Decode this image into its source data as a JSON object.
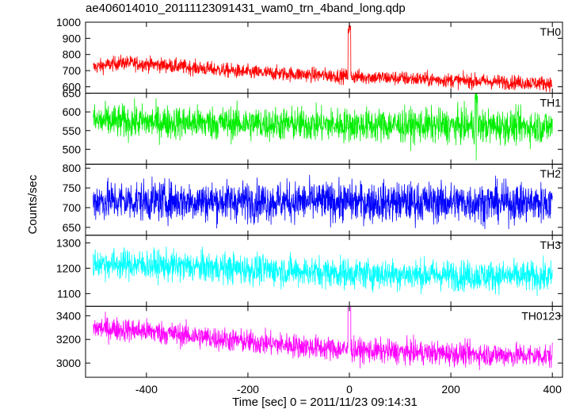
{
  "title": "ae406014010_20111123091431_wam0_trn_4band_long.qdp",
  "chart_data": {
    "type": "line",
    "title": "ae406014010_20111123091431_wam0_trn_4band_long.qdp",
    "xlabel": "Time [sec] 0 = 2011/11/23 09:14:31",
    "ylabel": "Counts/sec",
    "xlim": [
      -520,
      420
    ],
    "xticks": [
      -400,
      -200,
      0,
      200,
      400
    ],
    "grid": false,
    "shared_x": true,
    "panels": [
      {
        "name": "TH0",
        "color": "#ff0000",
        "ylim": [
          560,
          1000
        ],
        "yticks": [
          600,
          700,
          800,
          900,
          1000
        ],
        "x_range": [
          -505,
          400
        ],
        "trend": [
          [
            -505,
            720
          ],
          [
            -450,
            750
          ],
          [
            -350,
            730
          ],
          [
            -200,
            690
          ],
          [
            0,
            665
          ],
          [
            200,
            640
          ],
          [
            400,
            620
          ]
        ],
        "noise": 45,
        "spikes": [
          {
            "x": 0,
            "y": 1000
          }
        ]
      },
      {
        "name": "TH1",
        "color": "#00ee00",
        "ylim": [
          460,
          650
        ],
        "yticks": [
          500,
          550,
          600,
          650
        ],
        "x_range": [
          -505,
          400
        ],
        "trend": [
          [
            -505,
            575
          ],
          [
            0,
            565
          ],
          [
            400,
            560
          ]
        ],
        "noise": 45,
        "spikes": [
          {
            "x": 250,
            "y": 470
          }
        ]
      },
      {
        "name": "TH2",
        "color": "#0000ff",
        "ylim": [
          630,
          810
        ],
        "yticks": [
          650,
          700,
          750,
          800
        ],
        "x_range": [
          -505,
          400
        ],
        "trend": [
          [
            -505,
            718
          ],
          [
            400,
            712
          ]
        ],
        "noise": 50,
        "spikes": []
      },
      {
        "name": "TH3",
        "color": "#00ffff",
        "ylim": [
          1050,
          1330
        ],
        "yticks": [
          1100,
          1200,
          1300
        ],
        "x_range": [
          -505,
          400
        ],
        "trend": [
          [
            -505,
            1220
          ],
          [
            -300,
            1205
          ],
          [
            0,
            1180
          ],
          [
            400,
            1165
          ]
        ],
        "noise": 60,
        "spikes": []
      },
      {
        "name": "TH0123",
        "color": "#ff00ff",
        "ylim": [
          2880,
          3480
        ],
        "yticks": [
          3000,
          3200,
          3400
        ],
        "x_range": [
          -505,
          400
        ],
        "trend": [
          [
            -505,
            3300
          ],
          [
            -400,
            3270
          ],
          [
            -200,
            3180
          ],
          [
            0,
            3110
          ],
          [
            200,
            3080
          ],
          [
            400,
            3060
          ]
        ],
        "noise": 100,
        "spikes": [
          {
            "x": 0,
            "y": 3480
          }
        ]
      }
    ]
  }
}
